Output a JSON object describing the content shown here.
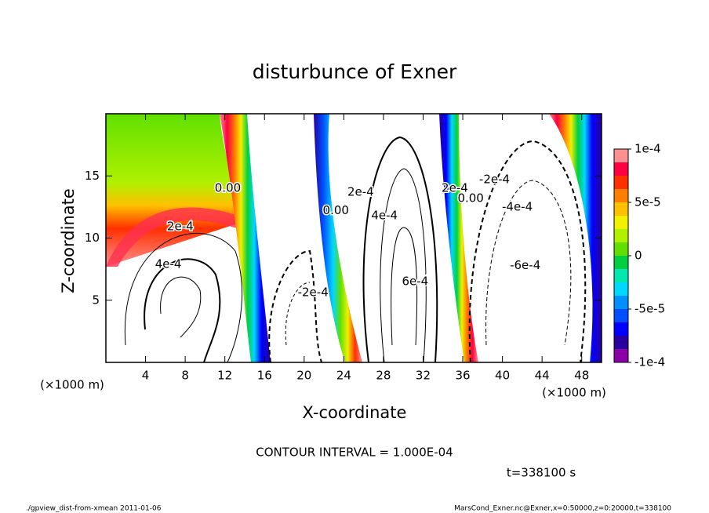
{
  "chart_data": {
    "type": "contour",
    "title": "disturbunce of Exner",
    "xlabel": "X-coordinate",
    "ylabel": "Z-coordinate",
    "x_unit": "(×1000 m)",
    "y_unit": "(×1000 m)",
    "xlim": [
      0,
      50
    ],
    "xticks": [
      4,
      8,
      12,
      16,
      20,
      24,
      28,
      32,
      36,
      40,
      44,
      48
    ],
    "ylim": [
      0,
      20
    ],
    "yticks": [
      5,
      10,
      15
    ],
    "colorbar": {
      "lim": [
        -0.0001,
        0.0001
      ],
      "ticks": [
        {
          "value": 0.0001,
          "label": "1e-4"
        },
        {
          "value": 5e-05,
          "label": "5e-5"
        },
        {
          "value": 0,
          "label": "0"
        },
        {
          "value": -5e-05,
          "label": "-5e-5"
        },
        {
          "value": -0.0001,
          "label": "-1e-4"
        }
      ],
      "colors": [
        "#8c00a8",
        "#2a00a0",
        "#0000ff",
        "#0050ff",
        "#0090ff",
        "#00d8ff",
        "#00e8b0",
        "#00d040",
        "#60e000",
        "#b0f000",
        "#f0f000",
        "#ffc000",
        "#ff8000",
        "#ff3000",
        "#ff0040",
        "#ff9090"
      ]
    },
    "contour_labels": [
      {
        "x": 12.3,
        "z": 14.0,
        "label": "0.00"
      },
      {
        "x": 23.2,
        "z": 12.2,
        "label": "0.00"
      },
      {
        "x": 25.7,
        "z": 13.7,
        "label": "2e-4"
      },
      {
        "x": 28.1,
        "z": 11.8,
        "label": "4e-4"
      },
      {
        "x": 31.2,
        "z": 6.5,
        "label": "6e-4"
      },
      {
        "x": 35.2,
        "z": 14.0,
        "label": "2e-4"
      },
      {
        "x": 36.8,
        "z": 13.2,
        "label": "0.00"
      },
      {
        "x": 39.2,
        "z": 14.7,
        "label": "-2e-4"
      },
      {
        "x": 41.5,
        "z": 12.5,
        "label": "-4e-4"
      },
      {
        "x": 42.3,
        "z": 7.8,
        "label": "-6e-4"
      },
      {
        "x": 20.9,
        "z": 5.6,
        "label": "-2e-4"
      },
      {
        "x": 7.5,
        "z": 10.9,
        "label": "2e-4"
      },
      {
        "x": 6.3,
        "z": 7.9,
        "label": "4e-4"
      }
    ],
    "contour_interval": "CONTOUR INTERVAL = 1.000E-04",
    "time": "t=338100 s",
    "footer_left": "./gpview_dist-from-xmean  2011-01-06",
    "footer_right": "MarsCond_Exner.nc@Exner,x=0:50000,z=0:20000,t=338100"
  }
}
